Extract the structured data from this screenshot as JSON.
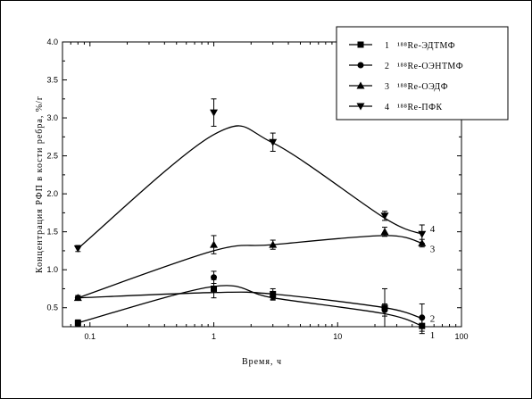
{
  "chart_data": {
    "type": "line",
    "title": "",
    "xlabel": "Время, ч",
    "ylabel": "Концентрация РФП в кости ребра, %/г",
    "x_scale": "log",
    "xlim": [
      0.06,
      100
    ],
    "ylim": [
      0.25,
      4.0
    ],
    "x_ticks": [
      {
        "value": 0.1,
        "label": "0.1"
      },
      {
        "value": 1,
        "label": "1"
      },
      {
        "value": 10,
        "label": "10"
      },
      {
        "value": 100,
        "label": "100"
      }
    ],
    "y_ticks": [
      {
        "value": 0.5,
        "label": "0.5"
      },
      {
        "value": 1.0,
        "label": "1.0"
      },
      {
        "value": 1.5,
        "label": "1.5"
      },
      {
        "value": 2.0,
        "label": "2.0"
      },
      {
        "value": 2.5,
        "label": "2.5"
      },
      {
        "value": 3.0,
        "label": "3.0"
      },
      {
        "value": 3.5,
        "label": "3.5"
      },
      {
        "value": 4.0,
        "label": "4.0"
      }
    ],
    "grid": false,
    "legend_position": "top-right",
    "series": [
      {
        "num": "1",
        "name": "¹⁸⁸Re-ЭДТМФ",
        "marker": "square",
        "end_label": "1",
        "x": [
          0.08,
          1,
          3,
          24,
          48
        ],
        "y": [
          0.3,
          0.75,
          0.68,
          0.5,
          0.26
        ],
        "err": [
          0.04,
          0.12,
          0.07,
          0.25,
          0.1
        ],
        "curve_y": [
          0.3,
          0.78,
          0.63,
          0.42,
          0.26
        ]
      },
      {
        "num": "2",
        "name": "¹⁸⁸Re-ОЭНТМФ",
        "marker": "circle",
        "end_label": "2",
        "x": [
          0.08,
          1,
          3,
          24,
          48
        ],
        "y": [
          0.63,
          0.9,
          0.65,
          0.47,
          0.37
        ],
        "err": [
          0.03,
          0.08,
          0.05,
          0.08,
          0.18
        ],
        "curve_y": [
          0.63,
          0.7,
          0.68,
          0.5,
          0.36
        ]
      },
      {
        "num": "3",
        "name": "¹⁸⁸Re-ОЭДФ",
        "marker": "triangle-up",
        "end_label": "3",
        "x": [
          0.08,
          1,
          3,
          24,
          48
        ],
        "y": [
          0.63,
          1.33,
          1.33,
          1.5,
          1.35
        ],
        "err": [
          0.03,
          0.12,
          0.06,
          0.06,
          0.05
        ],
        "curve_y": [
          0.63,
          1.25,
          1.33,
          1.45,
          1.35
        ]
      },
      {
        "num": "4",
        "name": "¹⁸⁸Re-ПФК",
        "marker": "triangle-down",
        "end_label": "4",
        "x": [
          0.08,
          1,
          3,
          24,
          48
        ],
        "y": [
          1.28,
          3.07,
          2.68,
          1.71,
          1.47
        ],
        "err": [
          0.04,
          0.18,
          0.12,
          0.06,
          0.12
        ],
        "curve_y": [
          1.28,
          2.78,
          2.67,
          1.68,
          1.47
        ]
      }
    ]
  }
}
